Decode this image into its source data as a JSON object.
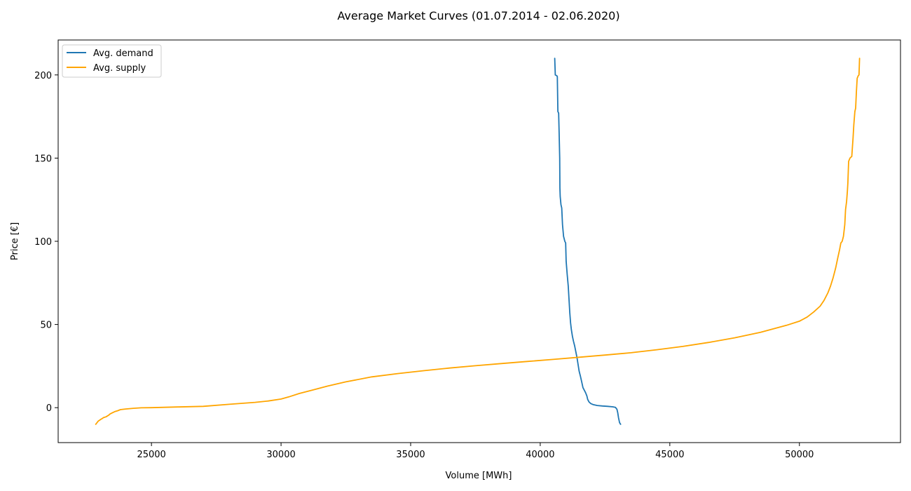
{
  "chart_data": {
    "type": "line",
    "title": "Average Market Curves (01.07.2014 - 02.06.2020)",
    "xlabel": "Volume [MWh]",
    "ylabel": "Price [€]",
    "xlim": [
      21400,
      53900
    ],
    "ylim": [
      -21,
      221
    ],
    "x_ticks": [
      25000,
      30000,
      35000,
      40000,
      45000,
      50000
    ],
    "y_ticks": [
      0,
      50,
      100,
      150,
      200
    ],
    "grid": false,
    "legend_position": "top-left",
    "series": [
      {
        "name": "Avg. demand",
        "color": "#1f77b4",
        "points": [
          [
            40560,
            210
          ],
          [
            40580,
            200
          ],
          [
            40640,
            199.5
          ],
          [
            40660,
            199
          ],
          [
            40680,
            178
          ],
          [
            40710,
            177
          ],
          [
            40730,
            165
          ],
          [
            40750,
            150
          ],
          [
            40760,
            132
          ],
          [
            40770,
            127
          ],
          [
            40800,
            122
          ],
          [
            40830,
            120
          ],
          [
            40860,
            110
          ],
          [
            40900,
            103
          ],
          [
            40950,
            100
          ],
          [
            40980,
            99
          ],
          [
            41000,
            88
          ],
          [
            41040,
            80
          ],
          [
            41080,
            73
          ],
          [
            41110,
            65
          ],
          [
            41140,
            57
          ],
          [
            41170,
            51
          ],
          [
            41200,
            47
          ],
          [
            41240,
            43
          ],
          [
            41280,
            40
          ],
          [
            41330,
            37
          ],
          [
            41380,
            33
          ],
          [
            41420,
            30
          ],
          [
            41460,
            26
          ],
          [
            41500,
            22
          ],
          [
            41550,
            19
          ],
          [
            41600,
            15.5
          ],
          [
            41650,
            12
          ],
          [
            41700,
            10.5
          ],
          [
            41750,
            9
          ],
          [
            41800,
            7
          ],
          [
            41830,
            5
          ],
          [
            41880,
            3.5
          ],
          [
            41950,
            2.5
          ],
          [
            42050,
            1.8
          ],
          [
            42200,
            1.3
          ],
          [
            42400,
            1
          ],
          [
            42600,
            0.8
          ],
          [
            42800,
            0.5
          ],
          [
            42900,
            0.2
          ],
          [
            42960,
            -1
          ],
          [
            42990,
            -3
          ],
          [
            43020,
            -6
          ],
          [
            43060,
            -9
          ],
          [
            43100,
            -10
          ]
        ]
      },
      {
        "name": "Avg. supply",
        "color": "#ffa500",
        "points": [
          [
            22850,
            -10
          ],
          [
            22900,
            -9
          ],
          [
            22950,
            -8
          ],
          [
            23000,
            -7.5
          ],
          [
            23050,
            -7
          ],
          [
            23100,
            -6.5
          ],
          [
            23150,
            -6
          ],
          [
            23250,
            -5.5
          ],
          [
            23350,
            -4.5
          ],
          [
            23400,
            -3.8
          ],
          [
            23500,
            -3
          ],
          [
            23600,
            -2.3
          ],
          [
            23700,
            -1.8
          ],
          [
            23800,
            -1.2
          ],
          [
            24000,
            -0.8
          ],
          [
            24300,
            -0.4
          ],
          [
            24600,
            -0.1
          ],
          [
            25000,
            0
          ],
          [
            26000,
            0.4
          ],
          [
            27000,
            0.8
          ],
          [
            28000,
            2
          ],
          [
            29000,
            3.2
          ],
          [
            29500,
            4
          ],
          [
            30000,
            5.2
          ],
          [
            30300,
            6.5
          ],
          [
            30700,
            8.5
          ],
          [
            31200,
            10.5
          ],
          [
            31800,
            13
          ],
          [
            32500,
            15.5
          ],
          [
            33500,
            18.5
          ],
          [
            34500,
            20.5
          ],
          [
            35500,
            22.2
          ],
          [
            36500,
            23.8
          ],
          [
            37500,
            25.2
          ],
          [
            38500,
            26.5
          ],
          [
            39500,
            27.8
          ],
          [
            40500,
            29
          ],
          [
            41500,
            30.3
          ],
          [
            42500,
            31.6
          ],
          [
            43500,
            33
          ],
          [
            44500,
            34.8
          ],
          [
            45500,
            36.8
          ],
          [
            46500,
            39.2
          ],
          [
            47500,
            42
          ],
          [
            48500,
            45.3
          ],
          [
            49500,
            49.5
          ],
          [
            50000,
            52
          ],
          [
            50300,
            54.5
          ],
          [
            50550,
            57.5
          ],
          [
            50800,
            61
          ],
          [
            50950,
            64.5
          ],
          [
            51100,
            69
          ],
          [
            51200,
            73
          ],
          [
            51300,
            78
          ],
          [
            51400,
            84
          ],
          [
            51480,
            90
          ],
          [
            51550,
            95
          ],
          [
            51600,
            99
          ],
          [
            51650,
            100
          ],
          [
            51700,
            103
          ],
          [
            51750,
            110
          ],
          [
            51780,
            119
          ],
          [
            51820,
            124
          ],
          [
            51850,
            130
          ],
          [
            51870,
            135
          ],
          [
            51900,
            148
          ],
          [
            51950,
            150
          ],
          [
            52020,
            151
          ],
          [
            52070,
            162
          ],
          [
            52100,
            170
          ],
          [
            52140,
            178
          ],
          [
            52170,
            180
          ],
          [
            52200,
            190
          ],
          [
            52230,
            198
          ],
          [
            52270,
            199.5
          ],
          [
            52300,
            200
          ],
          [
            52320,
            210
          ]
        ]
      }
    ]
  }
}
